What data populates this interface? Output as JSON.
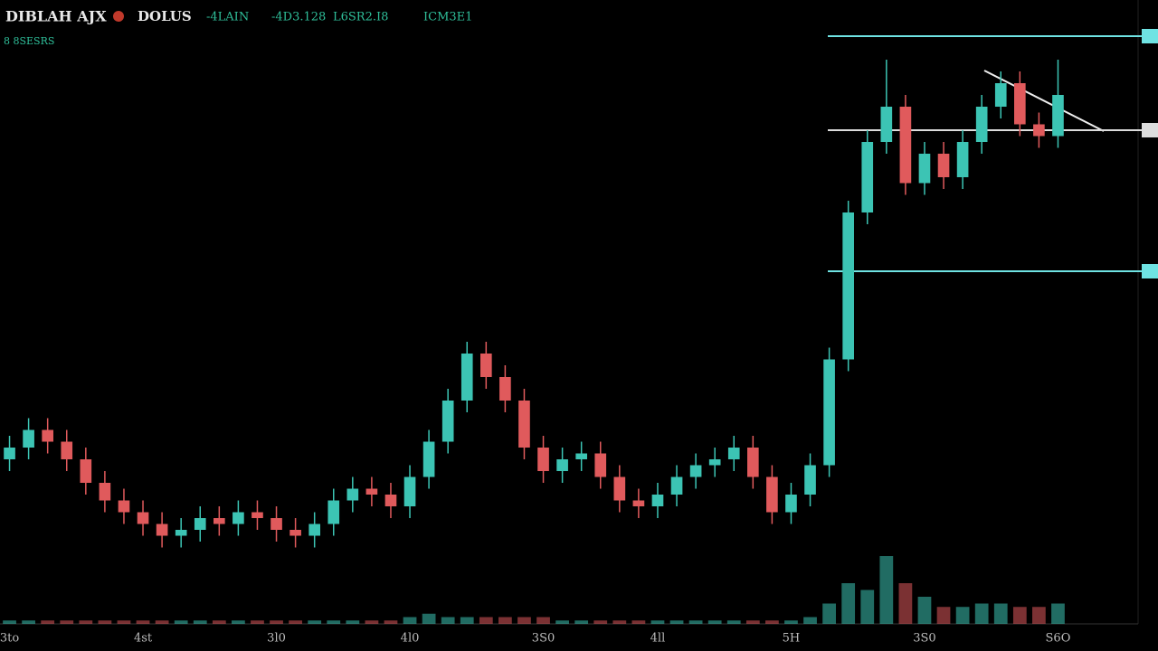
{
  "chart_data": {
    "type": "candlestick",
    "title": "DIBLAH AJX",
    "subtitle": "8 8SESRS",
    "stats": [
      "-4LAIN",
      "-4D3.128",
      "L6SR2.I8",
      "ICM3E1"
    ],
    "categories": [
      "3to",
      null,
      null,
      null,
      null,
      null,
      null,
      "4st",
      null,
      null,
      null,
      null,
      null,
      null,
      "3l0",
      null,
      null,
      null,
      null,
      null,
      null,
      "4l0",
      null,
      null,
      null,
      null,
      null,
      null,
      "3S0",
      null,
      null,
      null,
      null,
      null,
      "4ll",
      null,
      null,
      null,
      null,
      null,
      null,
      "5H",
      null,
      null,
      null,
      null,
      null,
      null,
      "3S0",
      null,
      null,
      null,
      null,
      null,
      null,
      "S6O"
    ],
    "ylim": [
      0,
      100
    ],
    "vlim": [
      0,
      40
    ],
    "series": [
      {
        "name": "DOLUS",
        "color": "#c0392b",
        "up_color": "#3cc4b4",
        "down_color": "#e05a5c",
        "open": [
          28,
          30,
          33,
          31,
          28,
          24,
          21,
          19,
          17,
          15,
          16,
          18,
          17,
          19,
          18,
          16,
          15,
          17,
          21,
          23,
          22,
          20,
          25,
          31,
          38,
          46,
          42,
          38,
          30,
          26,
          28,
          29,
          25,
          21,
          20,
          22,
          25,
          27,
          28,
          30,
          25,
          19,
          22,
          27,
          45,
          70,
          82,
          88,
          75,
          80,
          76,
          82,
          88,
          92,
          85,
          83
        ],
        "high": [
          32,
          35,
          35,
          33,
          30,
          26,
          23,
          21,
          19,
          18,
          20,
          20,
          21,
          21,
          20,
          18,
          19,
          23,
          25,
          25,
          24,
          27,
          33,
          40,
          48,
          48,
          44,
          40,
          32,
          30,
          31,
          31,
          27,
          23,
          24,
          27,
          29,
          30,
          32,
          32,
          27,
          24,
          29,
          47,
          72,
          84,
          96,
          90,
          82,
          82,
          84,
          90,
          94,
          94,
          87,
          96
        ],
        "low": [
          26,
          28,
          29,
          26,
          22,
          19,
          17,
          15,
          13,
          13,
          14,
          15,
          15,
          16,
          14,
          13,
          13,
          15,
          19,
          20,
          18,
          18,
          23,
          29,
          36,
          40,
          36,
          28,
          24,
          24,
          26,
          23,
          19,
          18,
          18,
          20,
          23,
          25,
          26,
          23,
          17,
          17,
          20,
          25,
          43,
          68,
          80,
          73,
          73,
          74,
          74,
          80,
          86,
          83,
          81,
          81
        ],
        "close": [
          30,
          33,
          31,
          28,
          24,
          21,
          19,
          17,
          15,
          16,
          18,
          17,
          19,
          18,
          16,
          15,
          17,
          21,
          23,
          22,
          20,
          25,
          31,
          38,
          46,
          42,
          38,
          30,
          26,
          28,
          29,
          25,
          21,
          20,
          22,
          25,
          27,
          28,
          30,
          25,
          19,
          22,
          27,
          45,
          70,
          82,
          88,
          75,
          80,
          76,
          82,
          88,
          92,
          85,
          83,
          90
        ],
        "volume": [
          1,
          1,
          1,
          1,
          1,
          1,
          1,
          1,
          1,
          1,
          1,
          1,
          1,
          1,
          1,
          1,
          1,
          1,
          1,
          1,
          1,
          2,
          3,
          2,
          2,
          2,
          2,
          2,
          2,
          1,
          1,
          1,
          1,
          1,
          1,
          1,
          1,
          1,
          1,
          1,
          1,
          1,
          2,
          6,
          12,
          10,
          20,
          12,
          8,
          5,
          5,
          6,
          6,
          5,
          5,
          6
        ]
      }
    ],
    "levels": [
      {
        "value": 100,
        "color": "#6fe3e3"
      },
      {
        "value": 84,
        "color": "#dddddd"
      },
      {
        "value": 60,
        "color": "#6fe3e3"
      }
    ]
  }
}
